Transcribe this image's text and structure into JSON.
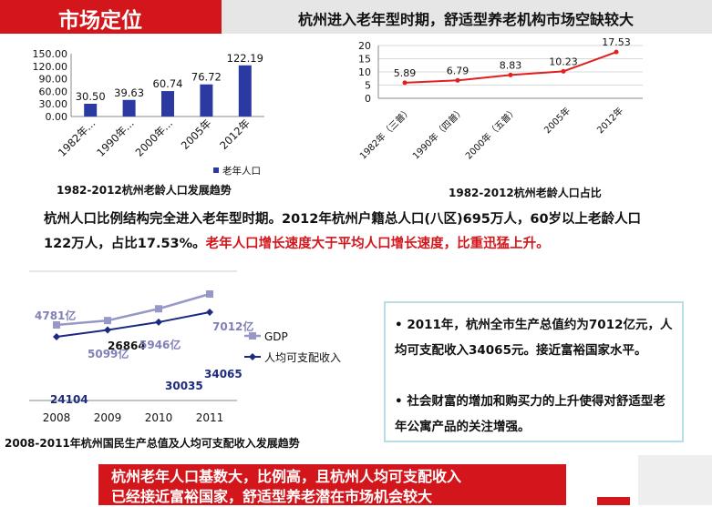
{
  "header": {
    "left_title": "市场定位",
    "right_title": "杭州进入老年型时期，舒适型养老机构市场空缺较大"
  },
  "chart_data": [
    {
      "type": "bar",
      "categories": [
        "1982年...",
        "1990年...",
        "2000年...",
        "2005年",
        "2012年"
      ],
      "values": [
        30.5,
        39.63,
        60.74,
        76.72,
        122.19
      ],
      "value_labels": [
        "30.50",
        "39.63",
        "60.74",
        "76.72",
        "122.19"
      ],
      "ylim": [
        0,
        150
      ],
      "yticks": [
        "0.00",
        "30.00",
        "60.00",
        "90.00",
        "120.00",
        "150.00"
      ],
      "legend": "老年人口",
      "legend_position": "bottom",
      "title": "1982-2012杭州老龄人口发展趋势",
      "color": "#2b3aa0"
    },
    {
      "type": "line",
      "categories": [
        "1982年（三普）",
        "1990年（四普）",
        "2000年（五普）",
        "2005年",
        "2012年"
      ],
      "values": [
        5.89,
        6.79,
        8.83,
        10.23,
        17.53
      ],
      "value_labels": [
        "5.89",
        "6.79",
        "8.83",
        "10.23",
        "17.53"
      ],
      "ylim": [
        0,
        20
      ],
      "yticks": [
        "0",
        "5",
        "10",
        "15",
        "20"
      ],
      "grid": true,
      "title": "1982-2012杭州老龄人口占比",
      "color": "#e02020"
    },
    {
      "type": "line",
      "categories": [
        "2008",
        "2009",
        "2010",
        "2011"
      ],
      "series": [
        {
          "name": "GDP",
          "values": [
            4781,
            5099,
            5946,
            7012
          ],
          "color": "#9898c8"
        },
        {
          "name": "人均可支配收入",
          "values": [
            24104,
            26864,
            30035,
            34065
          ],
          "color": "#1c2a80"
        }
      ],
      "annotations": [
        "4781亿",
        "5099亿",
        "26864",
        "5946亿",
        "7012亿",
        "34065",
        "30035",
        "24104"
      ],
      "legend_position": "right",
      "title": "2008-2011年杭州国民生产总值及人均可支配收入发展趋势"
    }
  ],
  "paragraph": {
    "line1": "杭州人口比例结构完全进入老年型时期。2012年杭州户籍总人口(八区)695万人，60岁以上老龄人口",
    "line2_black": "122万人，占比17.53%。",
    "line2_red": "老年人口增长速度大于平均人口增长速度，比重迅猛上升。"
  },
  "bullets": [
    "•  2011年，杭州全市生产总值约为7012亿元，人均可支配收入34065元。接近富裕国家水平。",
    "•   社会财富的增加和购买力的上升使得对舒适型老年公寓产品的关注增强。"
  ],
  "banner": {
    "line1": "杭州老年人口基数大，比例高，且杭州人均可支配收入",
    "line2": "已经接近富裕国家，舒适型养老潜在市场机会较大"
  },
  "colors": {
    "accent_red": "#d3161b",
    "header_grey": "#e6e6e6",
    "box_border": "#b7dde8"
  }
}
